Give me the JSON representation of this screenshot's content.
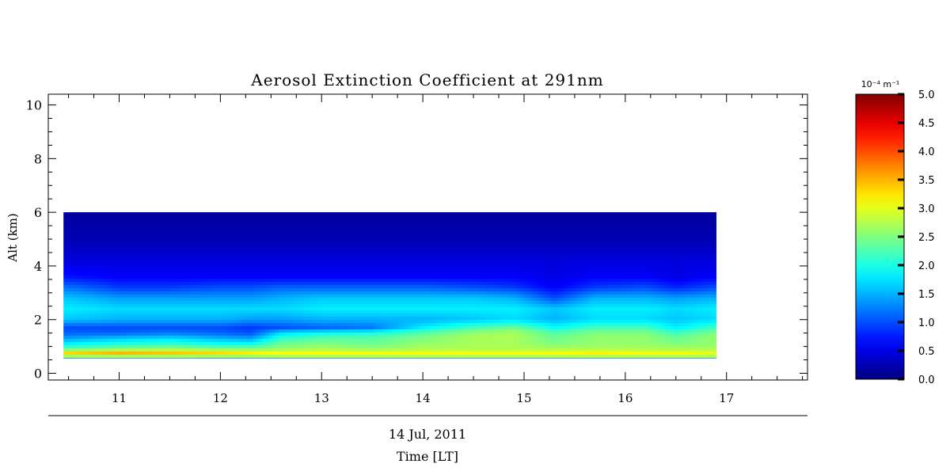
{
  "chart_data": {
    "type": "heatmap",
    "title": "Aerosol Extinction Coefficient at 291nm",
    "xlabel_date": "14 Jul, 2011",
    "xlabel": "Time [LT]",
    "ylabel": "Alt (km)",
    "xlim": [
      10.3,
      17.8
    ],
    "ylim": [
      -0.25,
      10.4
    ],
    "x_ticks": [
      "11",
      "12",
      "13",
      "14",
      "15",
      "16",
      "17"
    ],
    "y_ticks": [
      "0",
      "2",
      "4",
      "6",
      "8",
      "10"
    ],
    "data_extent": {
      "time_start": 10.45,
      "time_end": 16.9,
      "alt_bottom": 0.55,
      "alt_top": 6.0
    },
    "colorbar": {
      "unit": "10⁻⁴ m⁻¹",
      "range": [
        0.0,
        5.0
      ],
      "tick_labels": [
        "0.0",
        "0.5",
        "1.0",
        "1.5",
        "2.0",
        "2.5",
        "3.0",
        "3.5",
        "4.0",
        "4.5",
        "5.0"
      ],
      "colormap": "jet"
    },
    "series": [
      {
        "times": [
          10.45,
          11.0,
          11.5,
          12.0,
          12.3,
          12.6,
          13.0,
          13.5,
          14.0,
          14.5,
          14.9,
          15.3,
          15.7,
          16.2,
          16.5,
          16.9
        ],
        "altitudes": [
          0.55,
          0.62,
          0.75,
          0.9,
          1.1,
          1.3,
          1.5,
          1.7,
          2.0,
          2.4,
          2.8,
          3.2,
          3.6,
          4.2,
          5.0,
          6.0
        ],
        "values": [
          [
            1.3,
            1.3,
            1.3,
            1.3,
            1.3,
            1.3,
            1.3,
            1.3,
            1.3,
            1.3,
            1.3,
            1.3,
            1.3,
            1.3,
            1.3,
            1.3
          ],
          [
            2.6,
            2.6,
            2.6,
            2.6,
            2.6,
            2.7,
            2.7,
            2.7,
            2.7,
            2.7,
            2.7,
            2.7,
            2.7,
            2.7,
            2.7,
            2.7
          ],
          [
            3.3,
            3.5,
            3.4,
            3.3,
            3.2,
            3.1,
            3.1,
            3.1,
            3.1,
            3.1,
            3.1,
            3.1,
            3.2,
            3.1,
            3.1,
            3.0
          ],
          [
            2.3,
            2.5,
            2.6,
            2.5,
            2.5,
            2.6,
            2.7,
            2.6,
            2.7,
            2.7,
            2.7,
            2.7,
            2.7,
            2.7,
            2.7,
            2.7
          ],
          [
            1.8,
            2.0,
            2.1,
            1.9,
            1.9,
            2.4,
            2.5,
            2.4,
            2.6,
            2.7,
            2.7,
            2.5,
            2.6,
            2.6,
            2.5,
            2.6
          ],
          [
            1.4,
            1.6,
            1.7,
            1.5,
            1.4,
            2.1,
            2.3,
            2.3,
            2.5,
            2.7,
            2.7,
            2.4,
            2.6,
            2.6,
            2.4,
            2.6
          ],
          [
            1.1,
            1.1,
            1.2,
            1.1,
            1.0,
            1.7,
            1.9,
            2.0,
            2.3,
            2.6,
            2.7,
            2.3,
            2.5,
            2.5,
            2.2,
            2.5
          ],
          [
            1.0,
            1.0,
            1.0,
            1.0,
            0.9,
            1.0,
            1.1,
            1.2,
            1.8,
            2.2,
            2.4,
            1.9,
            2.2,
            2.2,
            1.8,
            2.2
          ],
          [
            1.6,
            1.5,
            1.5,
            1.5,
            1.4,
            1.4,
            1.5,
            1.5,
            1.5,
            1.6,
            1.7,
            1.5,
            1.7,
            1.7,
            1.6,
            1.7
          ],
          [
            1.8,
            1.7,
            1.7,
            1.7,
            1.7,
            1.7,
            1.8,
            1.8,
            1.8,
            1.8,
            1.8,
            1.6,
            1.8,
            1.8,
            1.7,
            1.8
          ],
          [
            1.6,
            1.4,
            1.4,
            1.4,
            1.4,
            1.5,
            1.6,
            1.6,
            1.6,
            1.6,
            1.5,
            1.0,
            1.5,
            1.5,
            1.4,
            1.5
          ],
          [
            1.2,
            0.9,
            0.9,
            1.0,
            1.0,
            1.1,
            1.1,
            1.1,
            1.1,
            1.0,
            0.9,
            0.6,
            0.9,
            1.0,
            0.8,
            1.0
          ],
          [
            0.7,
            0.6,
            0.6,
            0.6,
            0.6,
            0.6,
            0.6,
            0.6,
            0.6,
            0.6,
            0.6,
            0.5,
            0.6,
            0.6,
            0.5,
            0.6
          ],
          [
            0.45,
            0.45,
            0.45,
            0.45,
            0.45,
            0.45,
            0.45,
            0.45,
            0.45,
            0.45,
            0.45,
            0.45,
            0.45,
            0.45,
            0.45,
            0.45
          ],
          [
            0.25,
            0.25,
            0.25,
            0.25,
            0.25,
            0.25,
            0.25,
            0.25,
            0.25,
            0.25,
            0.25,
            0.25,
            0.25,
            0.25,
            0.25,
            0.25
          ],
          [
            0.15,
            0.15,
            0.15,
            0.15,
            0.15,
            0.15,
            0.15,
            0.15,
            0.15,
            0.15,
            0.15,
            0.15,
            0.15,
            0.15,
            0.15,
            0.15
          ]
        ]
      }
    ]
  }
}
